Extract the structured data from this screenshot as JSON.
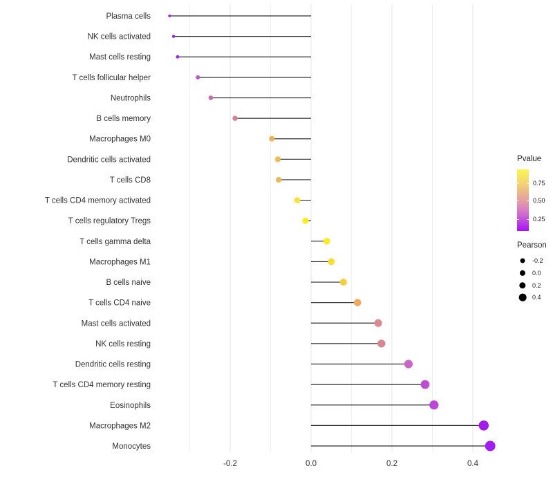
{
  "chart_data": {
    "type": "scatter",
    "variant": "lollipop",
    "title": "",
    "xlabel": "",
    "ylabel": "",
    "x_axis": {
      "tick_labels": [
        "-0.2",
        "0.0",
        "0.2",
        "0.4"
      ],
      "tick_values": [
        -0.2,
        0.0,
        0.2,
        0.4
      ],
      "minor_gridlines": [
        -0.3,
        -0.1,
        0.1,
        0.3
      ],
      "xlim": [
        -0.385,
        0.475
      ]
    },
    "grid": "vertical-only",
    "background": "#ffffff",
    "stick_color": "#2b2b2b",
    "major_grid_color": "#e4e4e4",
    "minor_grid_color": "#f1f1f1",
    "axis_text_color": "#303030",
    "points": [
      {
        "label": "Plasma cells",
        "pearson": -0.35,
        "dot_color": "#9B1CE6",
        "radius": 1.9
      },
      {
        "label": "NK cells activated",
        "pearson": -0.34,
        "dot_color": "#9D20E2",
        "radius": 2.2
      },
      {
        "label": "Mast cells resting",
        "pearson": -0.33,
        "dot_color": "#A428DB",
        "radius": 2.5
      },
      {
        "label": "T cells follicular helper",
        "pearson": -0.28,
        "dot_color": "#BE54C6",
        "radius": 3.0
      },
      {
        "label": "Neutrophils",
        "pearson": -0.248,
        "dot_color": "#C96BB3",
        "radius": 3.3
      },
      {
        "label": "B cells memory",
        "pearson": -0.188,
        "dot_color": "#D38295",
        "radius": 3.7
      },
      {
        "label": "Macrophages M0",
        "pearson": -0.097,
        "dot_color": "#EBB25A",
        "radius": 4.0
      },
      {
        "label": "Dendritic cells activated",
        "pearson": -0.082,
        "dot_color": "#EDBB54",
        "radius": 4.1
      },
      {
        "label": "T cells CD8",
        "pearson": -0.08,
        "dot_color": "#ECB956",
        "radius": 4.1
      },
      {
        "label": "T cells CD4 memory activated",
        "pearson": -0.034,
        "dot_color": "#F8E13B",
        "radius": 4.4
      },
      {
        "label": "T cells regulatory  Tregs",
        "pearson": -0.014,
        "dot_color": "#FAEB22",
        "radius": 4.5
      },
      {
        "label": "T cells gamma delta",
        "pearson": 0.039,
        "dot_color": "#FAEB22",
        "radius": 4.8
      },
      {
        "label": "Macrophages M1",
        "pearson": 0.05,
        "dot_color": "#F7DF31",
        "radius": 4.9
      },
      {
        "label": "B cells naive",
        "pearson": 0.08,
        "dot_color": "#F2CE45",
        "radius": 5.1
      },
      {
        "label": "T cells CD4 naive",
        "pearson": 0.115,
        "dot_color": "#EFA963",
        "radius": 5.3
      },
      {
        "label": "Mast cells activated",
        "pearson": 0.166,
        "dot_color": "#DA8B91",
        "radius": 5.6
      },
      {
        "label": "NK cells resting",
        "pearson": 0.174,
        "dot_color": "#D9868F",
        "radius": 5.7
      },
      {
        "label": "Dendritic cells resting",
        "pearson": 0.241,
        "dot_color": "#C965C9",
        "radius": 6.1
      },
      {
        "label": "T cells CD4 memory resting",
        "pearson": 0.282,
        "dot_color": "#BD4ED2",
        "radius": 6.4
      },
      {
        "label": "Eosinophils",
        "pearson": 0.304,
        "dot_color": "#BB46D8",
        "radius": 6.6
      },
      {
        "label": "Macrophages M2",
        "pearson": 0.427,
        "dot_color": "#A21BEA",
        "radius": 7.2
      },
      {
        "label": "Monocytes",
        "pearson": 0.443,
        "dot_color": "#A01EF0",
        "radius": 7.5
      }
    ],
    "legend": {
      "position": "right",
      "pvalue": {
        "title": "Pvalue",
        "tick_labels": [
          "0.75",
          "0.50",
          "0.25"
        ],
        "gradient_top_color": "#FCF552",
        "gradient_mid_color": "#E39CA6",
        "gradient_bottom_color": "#A911F4"
      },
      "pearson": {
        "title": "Pearson",
        "entries": [
          {
            "label": "-0.2",
            "diameter": 7.0
          },
          {
            "label": "0.0",
            "diameter": 8.2
          },
          {
            "label": "0.2",
            "diameter": 9.4
          },
          {
            "label": "0.4",
            "diameter": 10.7
          }
        ],
        "dot_color": "#000000"
      }
    }
  }
}
